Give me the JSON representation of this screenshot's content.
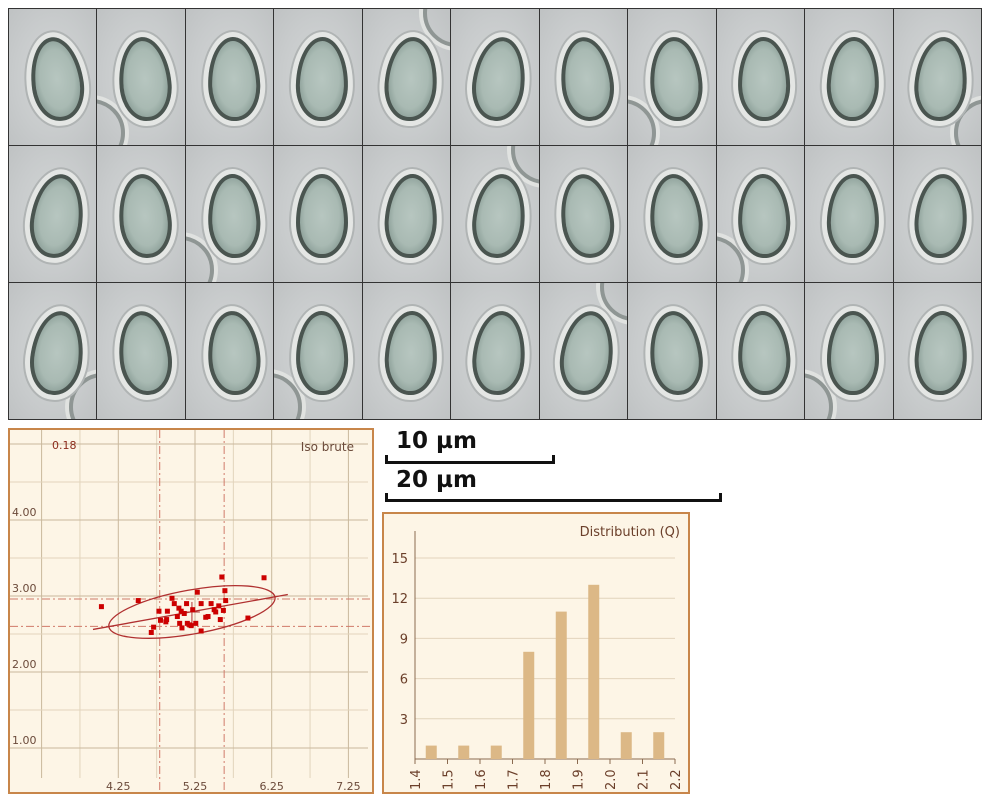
{
  "mosaic": {
    "rows": 3,
    "cols": 11
  },
  "scale_bars": [
    {
      "label": "10 µm",
      "length_um": 10
    },
    {
      "label": "20 µm",
      "length_um": 20
    }
  ],
  "colors": {
    "frame": "#c8864a",
    "panel": "#fdf5e6",
    "points": "#cc0000",
    "bars": "#dcb886",
    "grid": "#e2d4bc",
    "grid_major": "#c9b89c",
    "text": "#6b3f2a"
  },
  "chart_data": [
    {
      "type": "scatter",
      "title": "Iso brute",
      "corner_label": "0.18",
      "xlabel": "",
      "ylabel": "",
      "x_ticks": [
        "4.25",
        "5.25",
        "6.25",
        "7.25"
      ],
      "y_ticks": [
        "1.00",
        "2.00",
        "3.00",
        "4.00"
      ],
      "xlim": [
        2.84,
        7.61
      ],
      "ylim": [
        0.62,
        5.18
      ],
      "grid": true,
      "points": [
        [
          4.03,
          2.86
        ],
        [
          4.51,
          2.94
        ],
        [
          4.68,
          2.52
        ],
        [
          4.71,
          2.59
        ],
        [
          4.78,
          2.8
        ],
        [
          4.8,
          2.68
        ],
        [
          4.87,
          2.66
        ],
        [
          4.89,
          2.8
        ],
        [
          4.88,
          2.69
        ],
        [
          4.95,
          2.97
        ],
        [
          4.98,
          2.9
        ],
        [
          5.02,
          2.73
        ],
        [
          5.04,
          2.84
        ],
        [
          5.05,
          2.64
        ],
        [
          5.07,
          2.8
        ],
        [
          5.08,
          2.58
        ],
        [
          5.11,
          2.77
        ],
        [
          5.14,
          2.9
        ],
        [
          5.15,
          2.64
        ],
        [
          5.18,
          2.62
        ],
        [
          5.2,
          2.61
        ],
        [
          5.22,
          2.82
        ],
        [
          5.26,
          2.64
        ],
        [
          5.28,
          3.05
        ],
        [
          5.33,
          2.9
        ],
        [
          5.33,
          2.54
        ],
        [
          5.39,
          2.72
        ],
        [
          5.42,
          2.73
        ],
        [
          5.46,
          2.9
        ],
        [
          5.5,
          2.82
        ],
        [
          5.52,
          2.79
        ],
        [
          5.56,
          2.87
        ],
        [
          5.58,
          2.69
        ],
        [
          5.6,
          3.25
        ],
        [
          5.62,
          2.81
        ],
        [
          5.64,
          3.07
        ],
        [
          5.65,
          2.94
        ],
        [
          5.94,
          2.71
        ],
        [
          6.15,
          3.24
        ]
      ],
      "regression_line": [
        [
          3.92,
          2.56
        ],
        [
          6.46,
          3.02
        ]
      ],
      "mean_minus_sd_x": 4.79,
      "mean_plus_sd_x": 5.63,
      "mean_minus_sd_y": 2.6,
      "mean_plus_sd_y": 2.96,
      "ellipse": {
        "cx": 5.21,
        "cy": 2.79,
        "semi_major": 1.1,
        "semi_minor": 0.29
      }
    },
    {
      "type": "bar",
      "title": "Distribution (Q)",
      "bin_edges": [
        "1.4",
        "1.5",
        "1.6",
        "1.7",
        "1.8",
        "1.9",
        "2.0",
        "2.1",
        "2.2"
      ],
      "categories": [
        "1.4-1.5",
        "1.5-1.6",
        "1.6-1.7",
        "1.7-1.8",
        "1.8-1.9",
        "1.9-2.0",
        "2.0-2.1",
        "2.1-2.2"
      ],
      "values": [
        1,
        1,
        1,
        8,
        11,
        13,
        2,
        2
      ],
      "y_ticks": [
        "3",
        "6",
        "9",
        "12",
        "15"
      ],
      "ylim": [
        0,
        17
      ],
      "xlim": [
        1.4,
        2.2
      ]
    }
  ]
}
